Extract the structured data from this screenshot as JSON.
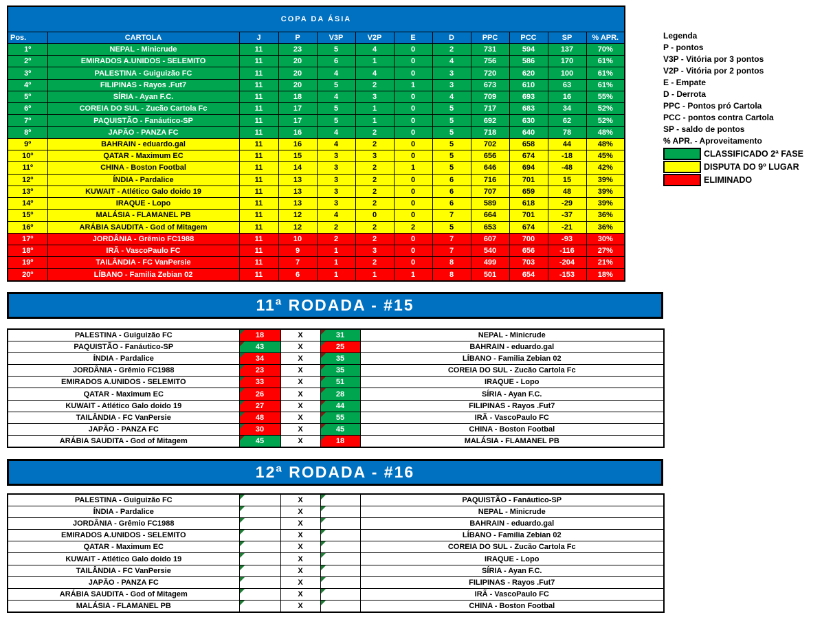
{
  "title": "COPA DA ÁSIA",
  "colors": {
    "header_blue": "#0070C0",
    "zone_green": "#00A550",
    "zone_yellow": "#FFFF00",
    "zone_red": "#FF0000",
    "border_black": "#000000"
  },
  "x_label": "X",
  "standings": {
    "columns": [
      "Pos.",
      "CARTOLA",
      "J",
      "P",
      "V3P",
      "V2P",
      "E",
      "D",
      "PPC",
      "PCC",
      "SP",
      "% APR."
    ],
    "rows": [
      {
        "pos": "1º",
        "team": "NEPAL - Minicrude",
        "j": "11",
        "p": "23",
        "v3p": "5",
        "v2p": "4",
        "e": "0",
        "d": "2",
        "ppc": "731",
        "pcc": "594",
        "sp": "137",
        "apr": "70%",
        "zone": "green"
      },
      {
        "pos": "2º",
        "team": "EMIRADOS A.UNIDOS - SELEMITO",
        "j": "11",
        "p": "20",
        "v3p": "6",
        "v2p": "1",
        "e": "0",
        "d": "4",
        "ppc": "756",
        "pcc": "586",
        "sp": "170",
        "apr": "61%",
        "zone": "green"
      },
      {
        "pos": "3º",
        "team": "PALESTINA - Guiguizão FC",
        "j": "11",
        "p": "20",
        "v3p": "4",
        "v2p": "4",
        "e": "0",
        "d": "3",
        "ppc": "720",
        "pcc": "620",
        "sp": "100",
        "apr": "61%",
        "zone": "green"
      },
      {
        "pos": "4º",
        "team": "FILIPINAS - Rayos .Fut7",
        "j": "11",
        "p": "20",
        "v3p": "5",
        "v2p": "2",
        "e": "1",
        "d": "3",
        "ppc": "673",
        "pcc": "610",
        "sp": "63",
        "apr": "61%",
        "zone": "green"
      },
      {
        "pos": "5º",
        "team": "SÍRIA - Ayan F.C.",
        "j": "11",
        "p": "18",
        "v3p": "4",
        "v2p": "3",
        "e": "0",
        "d": "4",
        "ppc": "709",
        "pcc": "693",
        "sp": "16",
        "apr": "55%",
        "zone": "green"
      },
      {
        "pos": "6º",
        "team": "COREIA DO SUL - Zucão Cartola Fc",
        "j": "11",
        "p": "17",
        "v3p": "5",
        "v2p": "1",
        "e": "0",
        "d": "5",
        "ppc": "717",
        "pcc": "683",
        "sp": "34",
        "apr": "52%",
        "zone": "green"
      },
      {
        "pos": "7º",
        "team": "PAQUISTÃO - Fanáutico-SP",
        "j": "11",
        "p": "17",
        "v3p": "5",
        "v2p": "1",
        "e": "0",
        "d": "5",
        "ppc": "692",
        "pcc": "630",
        "sp": "62",
        "apr": "52%",
        "zone": "green"
      },
      {
        "pos": "8º",
        "team": "JAPÃO - PANZA FC",
        "j": "11",
        "p": "16",
        "v3p": "4",
        "v2p": "2",
        "e": "0",
        "d": "5",
        "ppc": "718",
        "pcc": "640",
        "sp": "78",
        "apr": "48%",
        "zone": "green"
      },
      {
        "pos": "9º",
        "team": "BAHRAIN - eduardo.gal",
        "j": "11",
        "p": "16",
        "v3p": "4",
        "v2p": "2",
        "e": "0",
        "d": "5",
        "ppc": "702",
        "pcc": "658",
        "sp": "44",
        "apr": "48%",
        "zone": "yellow"
      },
      {
        "pos": "10º",
        "team": "QATAR - Maximum EC",
        "j": "11",
        "p": "15",
        "v3p": "3",
        "v2p": "3",
        "e": "0",
        "d": "5",
        "ppc": "656",
        "pcc": "674",
        "sp": "-18",
        "apr": "45%",
        "zone": "yellow"
      },
      {
        "pos": "11º",
        "team": "CHINA - Boston Footbal",
        "j": "11",
        "p": "14",
        "v3p": "3",
        "v2p": "2",
        "e": "1",
        "d": "5",
        "ppc": "646",
        "pcc": "694",
        "sp": "-48",
        "apr": "42%",
        "zone": "yellow"
      },
      {
        "pos": "12º",
        "team": "ÍNDIA - Pardalice",
        "j": "11",
        "p": "13",
        "v3p": "3",
        "v2p": "2",
        "e": "0",
        "d": "6",
        "ppc": "716",
        "pcc": "701",
        "sp": "15",
        "apr": "39%",
        "zone": "yellow"
      },
      {
        "pos": "13º",
        "team": "KUWAIT - Atlético Galo doido 19",
        "j": "11",
        "p": "13",
        "v3p": "3",
        "v2p": "2",
        "e": "0",
        "d": "6",
        "ppc": "707",
        "pcc": "659",
        "sp": "48",
        "apr": "39%",
        "zone": "yellow"
      },
      {
        "pos": "14º",
        "team": "IRAQUE - Lopo",
        "j": "11",
        "p": "13",
        "v3p": "3",
        "v2p": "2",
        "e": "0",
        "d": "6",
        "ppc": "589",
        "pcc": "618",
        "sp": "-29",
        "apr": "39%",
        "zone": "yellow"
      },
      {
        "pos": "15º",
        "team": "MALÁSIA - FLAMANEL PB",
        "j": "11",
        "p": "12",
        "v3p": "4",
        "v2p": "0",
        "e": "0",
        "d": "7",
        "ppc": "664",
        "pcc": "701",
        "sp": "-37",
        "apr": "36%",
        "zone": "yellow"
      },
      {
        "pos": "16º",
        "team": "ARÁBIA SAUDITA - God of Mitagem",
        "j": "11",
        "p": "12",
        "v3p": "2",
        "v2p": "2",
        "e": "2",
        "d": "5",
        "ppc": "653",
        "pcc": "674",
        "sp": "-21",
        "apr": "36%",
        "zone": "yellow"
      },
      {
        "pos": "17º",
        "team": "JORDÂNIA - Grêmio FC1988",
        "j": "11",
        "p": "10",
        "v3p": "2",
        "v2p": "2",
        "e": "0",
        "d": "7",
        "ppc": "607",
        "pcc": "700",
        "sp": "-93",
        "apr": "30%",
        "zone": "red"
      },
      {
        "pos": "18º",
        "team": "IRÃ - VascoPaulo FC",
        "j": "11",
        "p": "9",
        "v3p": "1",
        "v2p": "3",
        "e": "0",
        "d": "7",
        "ppc": "540",
        "pcc": "656",
        "sp": "-116",
        "apr": "27%",
        "zone": "red"
      },
      {
        "pos": "19º",
        "team": "TAILÂNDIA - FC VanPersie",
        "j": "11",
        "p": "7",
        "v3p": "1",
        "v2p": "2",
        "e": "0",
        "d": "8",
        "ppc": "499",
        "pcc": "703",
        "sp": "-204",
        "apr": "21%",
        "zone": "red"
      },
      {
        "pos": "20º",
        "team": "LÍBANO - Familia Zebian 02",
        "j": "11",
        "p": "6",
        "v3p": "1",
        "v2p": "1",
        "e": "1",
        "d": "8",
        "ppc": "501",
        "pcc": "654",
        "sp": "-153",
        "apr": "18%",
        "zone": "red"
      }
    ]
  },
  "legend": {
    "title": "Legenda",
    "items": [
      "P - pontos",
      "V3P - Vitória por 3 pontos",
      "V2P - Vitória por 2 pontos",
      "E - Empate",
      "D - Derrota",
      "PPC - Pontos pró Cartola",
      "PCC - pontos contra Cartola",
      "SP - saldo de pontos",
      "% APR. - Aproveitamento"
    ],
    "zones": [
      {
        "color": "#00A550",
        "label": "CLASSIFICADO 2ª FASE"
      },
      {
        "color": "#FFFF00",
        "label": "DISPUTA DO 9º LUGAR"
      },
      {
        "color": "#FF0000",
        "label": "ELIMINADO"
      }
    ]
  },
  "rounds": [
    {
      "title": "11ª RODADA - #15",
      "matches": [
        {
          "home": "PALESTINA - Guiguizão FC",
          "home_score": "18",
          "home_color": "red",
          "away_score": "31",
          "away_color": "green",
          "away": "NEPAL - Minicrude"
        },
        {
          "home": "PAQUISTÃO - Fanáutico-SP",
          "home_score": "43",
          "home_color": "green",
          "away_score": "25",
          "away_color": "red",
          "away": "BAHRAIN - eduardo.gal"
        },
        {
          "home": "ÍNDIA - Pardalice",
          "home_score": "34",
          "home_color": "red",
          "away_score": "35",
          "away_color": "green",
          "away": "LÍBANO - Familia Zebian 02"
        },
        {
          "home": "JORDÂNIA - Grêmio FC1988",
          "home_score": "23",
          "home_color": "red",
          "away_score": "35",
          "away_color": "green",
          "away": "COREIA DO SUL - Zucão Cartola Fc"
        },
        {
          "home": "EMIRADOS A.UNIDOS - SELEMITO",
          "home_score": "33",
          "home_color": "red",
          "away_score": "51",
          "away_color": "green",
          "away": "IRAQUE - Lopo"
        },
        {
          "home": "QATAR - Maximum EC",
          "home_score": "26",
          "home_color": "red",
          "away_score": "28",
          "away_color": "green",
          "away": "SÍRIA - Ayan F.C."
        },
        {
          "home": "KUWAIT - Atlético Galo doido 19",
          "home_score": "27",
          "home_color": "red",
          "away_score": "44",
          "away_color": "green",
          "away": "FILIPINAS - Rayos .Fut7"
        },
        {
          "home": "TAILÂNDIA - FC VanPersie",
          "home_score": "48",
          "home_color": "red",
          "away_score": "55",
          "away_color": "green",
          "away": "IRÃ - VascoPaulo FC"
        },
        {
          "home": "JAPÃO - PANZA FC",
          "home_score": "30",
          "home_color": "red",
          "away_score": "45",
          "away_color": "green",
          "away": "CHINA - Boston Footbal"
        },
        {
          "home": "ARÁBIA SAUDITA - God of Mitagem",
          "home_score": "45",
          "home_color": "green",
          "away_score": "18",
          "away_color": "red",
          "away": "MALÁSIA - FLAMANEL PB"
        }
      ]
    },
    {
      "title": "12ª RODADA - #16",
      "matches": [
        {
          "home": "PALESTINA - Guiguizão FC",
          "home_score": "",
          "home_color": "white",
          "away_score": "",
          "away_color": "white",
          "away": "PAQUISTÃO - Fanáutico-SP"
        },
        {
          "home": "ÍNDIA - Pardalice",
          "home_score": "",
          "home_color": "white",
          "away_score": "",
          "away_color": "white",
          "away": "NEPAL - Minicrude"
        },
        {
          "home": "JORDÂNIA - Grêmio FC1988",
          "home_score": "",
          "home_color": "white",
          "away_score": "",
          "away_color": "white",
          "away": "BAHRAIN - eduardo.gal"
        },
        {
          "home": "EMIRADOS A.UNIDOS - SELEMITO",
          "home_score": "",
          "home_color": "white",
          "away_score": "",
          "away_color": "white",
          "away": "LÍBANO - Familia Zebian 02"
        },
        {
          "home": "QATAR - Maximum EC",
          "home_score": "",
          "home_color": "white",
          "away_score": "",
          "away_color": "white",
          "away": "COREIA DO SUL - Zucão Cartola Fc"
        },
        {
          "home": "KUWAIT - Atlético Galo doido 19",
          "home_score": "",
          "home_color": "white",
          "away_score": "",
          "away_color": "white",
          "away": "IRAQUE - Lopo"
        },
        {
          "home": "TAILÂNDIA - FC VanPersie",
          "home_score": "",
          "home_color": "white",
          "away_score": "",
          "away_color": "white",
          "away": "SÍRIA - Ayan F.C."
        },
        {
          "home": "JAPÃO - PANZA FC",
          "home_score": "",
          "home_color": "white",
          "away_score": "",
          "away_color": "white",
          "away": "FILIPINAS - Rayos .Fut7"
        },
        {
          "home": "ARÁBIA SAUDITA - God of Mitagem",
          "home_score": "",
          "home_color": "white",
          "away_score": "",
          "away_color": "white",
          "away": "IRÃ - VascoPaulo FC"
        },
        {
          "home": "MALÁSIA - FLAMANEL PB",
          "home_score": "",
          "home_color": "white",
          "away_score": "",
          "away_color": "white",
          "away": "CHINA - Boston Footbal"
        }
      ]
    }
  ]
}
